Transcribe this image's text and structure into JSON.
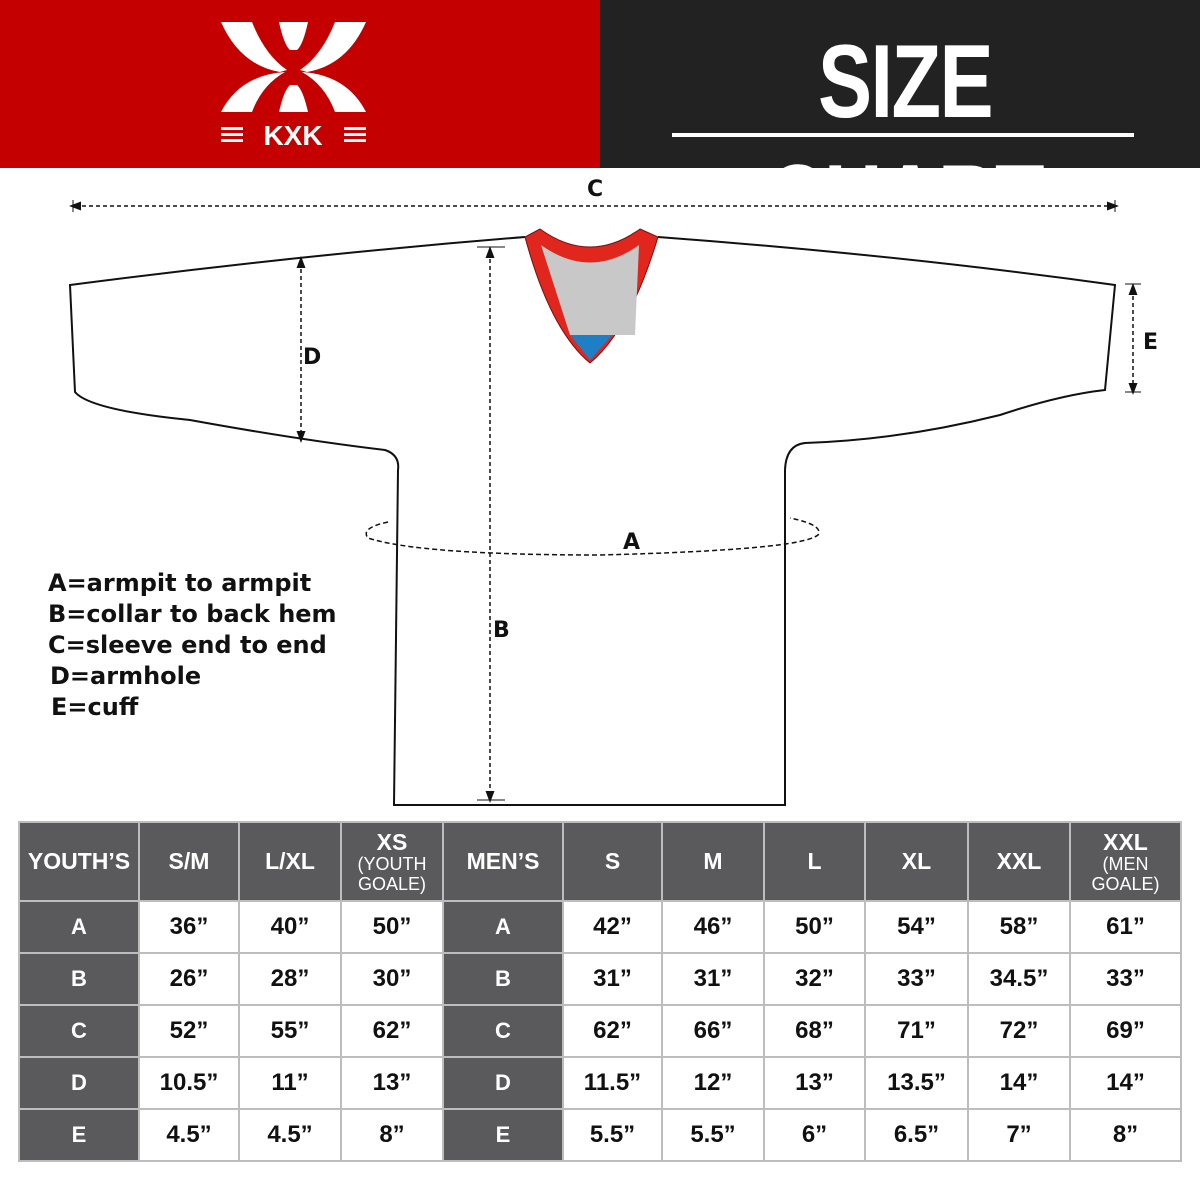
{
  "brand": {
    "logo_text": "KXK",
    "background": "#c50000"
  },
  "header": {
    "title": "SIZE CHART",
    "background": "#222222"
  },
  "diagram": {
    "labels": {
      "a": "A",
      "b": "B",
      "c": "C",
      "d": "D",
      "e": "E"
    },
    "colors": {
      "collar_trim": "#e0261d",
      "collar_inner": "#c8c8c8",
      "collar_tip": "#1f7fc4"
    }
  },
  "legend": [
    "A=armpit to armpit",
    "B=collar to back hem",
    "C=sleeve end to end",
    "D=armhole",
    "E=cuff"
  ],
  "table": {
    "youth_header": "YOUTH’S",
    "youth_sizes": [
      {
        "main": "S/M"
      },
      {
        "main": "L/XL"
      },
      {
        "main": "XS",
        "sub": "(YOUTH GOALE)"
      }
    ],
    "men_header": "MEN’S",
    "men_sizes": [
      {
        "main": "S"
      },
      {
        "main": "M"
      },
      {
        "main": "L"
      },
      {
        "main": "XL"
      },
      {
        "main": "XXL"
      },
      {
        "main": "XXL",
        "sub": "(MEN GOALE)"
      }
    ],
    "rows": [
      {
        "label": "A",
        "youth": [
          "36”",
          "40”",
          "50”"
        ],
        "men": [
          "42”",
          "46”",
          "50”",
          "54”",
          "58”",
          "61”"
        ]
      },
      {
        "label": "B",
        "youth": [
          "26”",
          "28”",
          "30”"
        ],
        "men": [
          "31”",
          "31”",
          "32”",
          "33”",
          "34.5”",
          "33”"
        ]
      },
      {
        "label": "C",
        "youth": [
          "52”",
          "55”",
          "62”"
        ],
        "men": [
          "62”",
          "66”",
          "68”",
          "71”",
          "72”",
          "69”"
        ]
      },
      {
        "label": "D",
        "youth": [
          "10.5”",
          "11”",
          "13”"
        ],
        "men": [
          "11.5”",
          "12”",
          "13”",
          "13.5”",
          "14”",
          "14”"
        ]
      },
      {
        "label": "E",
        "youth": [
          "4.5”",
          "4.5”",
          "8”"
        ],
        "men": [
          "5.5”",
          "5.5”",
          "6”",
          "6.5”",
          "7”",
          "8”"
        ]
      }
    ]
  }
}
